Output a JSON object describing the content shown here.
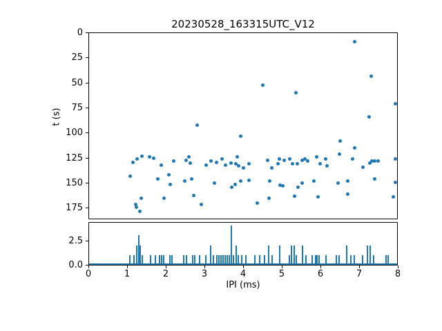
{
  "title": "20230528_163315UTC_V12",
  "colors": {
    "marker": "#1f77b4",
    "bar": "#1f77b4",
    "axis": "#000000",
    "background": "#ffffff"
  },
  "chart_data": [
    {
      "type": "scatter",
      "title": "20230528_163315UTC_V12",
      "xlabel": "",
      "ylabel": "t (s)",
      "xlim": [
        0,
        8
      ],
      "ylim": [
        0,
        185
      ],
      "y_inverted": true,
      "grid": false,
      "yticks": [
        "0",
        "25",
        "50",
        "75",
        "100",
        "125",
        "150",
        "175"
      ],
      "ytick_values": [
        0,
        25,
        50,
        75,
        100,
        125,
        150,
        175
      ],
      "points": [
        [
          6.88,
          9
        ],
        [
          7.3,
          43
        ],
        [
          4.5,
          52
        ],
        [
          5.36,
          60
        ],
        [
          7.93,
          71
        ],
        [
          7.25,
          84
        ],
        [
          2.8,
          92
        ],
        [
          3.93,
          103
        ],
        [
          6.5,
          108
        ],
        [
          6.88,
          115
        ],
        [
          1.07,
          143
        ],
        [
          1.14,
          129
        ],
        [
          1.21,
          171
        ],
        [
          1.24,
          174
        ],
        [
          1.25,
          126
        ],
        [
          1.32,
          178
        ],
        [
          1.36,
          165
        ],
        [
          1.38,
          123
        ],
        [
          1.57,
          124
        ],
        [
          1.68,
          125
        ],
        [
          1.79,
          146
        ],
        [
          1.88,
          132
        ],
        [
          1.95,
          165
        ],
        [
          2.07,
          142
        ],
        [
          2.11,
          151
        ],
        [
          2.2,
          128
        ],
        [
          2.48,
          148
        ],
        [
          2.52,
          127
        ],
        [
          2.59,
          124
        ],
        [
          2.63,
          130
        ],
        [
          2.66,
          146
        ],
        [
          2.71,
          162
        ],
        [
          2.91,
          171
        ],
        [
          3.04,
          132
        ],
        [
          3.16,
          128
        ],
        [
          3.25,
          150
        ],
        [
          3.3,
          129
        ],
        [
          3.45,
          126
        ],
        [
          3.54,
          132
        ],
        [
          3.68,
          130
        ],
        [
          3.7,
          154
        ],
        [
          3.79,
          151
        ],
        [
          3.8,
          131
        ],
        [
          3.84,
          124
        ],
        [
          3.88,
          133
        ],
        [
          3.93,
          148
        ],
        [
          4.0,
          135
        ],
        [
          4.14,
          131
        ],
        [
          4.14,
          147
        ],
        [
          4.36,
          170
        ],
        [
          4.63,
          127
        ],
        [
          4.66,
          165
        ],
        [
          4.68,
          148
        ],
        [
          4.73,
          135
        ],
        [
          4.89,
          131
        ],
        [
          4.93,
          126
        ],
        [
          4.95,
          152
        ],
        [
          5.02,
          153
        ],
        [
          5.05,
          127
        ],
        [
          5.2,
          126
        ],
        [
          5.27,
          131
        ],
        [
          5.32,
          163
        ],
        [
          5.39,
          131
        ],
        [
          5.41,
          154
        ],
        [
          5.52,
          127
        ],
        [
          5.52,
          150
        ],
        [
          5.59,
          126
        ],
        [
          5.66,
          128
        ],
        [
          5.82,
          148
        ],
        [
          5.89,
          124
        ],
        [
          5.93,
          164
        ],
        [
          5.98,
          131
        ],
        [
          6.13,
          126
        ],
        [
          6.16,
          133
        ],
        [
          6.45,
          150
        ],
        [
          6.48,
          121
        ],
        [
          6.7,
          148
        ],
        [
          6.7,
          161
        ],
        [
          6.82,
          126
        ],
        [
          7.09,
          134
        ],
        [
          7.27,
          130
        ],
        [
          7.32,
          128
        ],
        [
          7.39,
          128
        ],
        [
          7.39,
          146
        ],
        [
          7.48,
          128
        ],
        [
          7.87,
          164
        ],
        [
          7.93,
          126
        ],
        [
          7.93,
          149
        ]
      ]
    },
    {
      "type": "bar",
      "xlabel": "IPI (ms)",
      "ylabel": "",
      "xlim": [
        0,
        8
      ],
      "ylim": [
        0,
        4.3
      ],
      "grid": false,
      "xticks": [
        "0",
        "1",
        "2",
        "3",
        "4",
        "5",
        "6",
        "7",
        "8"
      ],
      "xtick_values": [
        0,
        1,
        2,
        3,
        4,
        5,
        6,
        7,
        8
      ],
      "yticks": [
        "0.0",
        "2.5"
      ],
      "ytick_values": [
        0,
        2.5
      ],
      "bar_width_ms": 0.04,
      "bars": [
        [
          1.05,
          1
        ],
        [
          1.16,
          1
        ],
        [
          1.23,
          2
        ],
        [
          1.29,
          3
        ],
        [
          1.33,
          2
        ],
        [
          1.38,
          1
        ],
        [
          1.59,
          1
        ],
        [
          1.71,
          1
        ],
        [
          1.82,
          1
        ],
        [
          1.88,
          1
        ],
        [
          1.93,
          1
        ],
        [
          2.09,
          1
        ],
        [
          2.14,
          1
        ],
        [
          2.45,
          1
        ],
        [
          2.51,
          1
        ],
        [
          2.68,
          1
        ],
        [
          2.73,
          1
        ],
        [
          2.86,
          1
        ],
        [
          3.02,
          1
        ],
        [
          3.14,
          2
        ],
        [
          3.21,
          1
        ],
        [
          3.3,
          1
        ],
        [
          3.36,
          1
        ],
        [
          3.41,
          1
        ],
        [
          3.46,
          1
        ],
        [
          3.51,
          1
        ],
        [
          3.57,
          1
        ],
        [
          3.62,
          1
        ],
        [
          3.68,
          4
        ],
        [
          3.74,
          1
        ],
        [
          3.81,
          2
        ],
        [
          3.86,
          1
        ],
        [
          3.94,
          1
        ],
        [
          4.06,
          1
        ],
        [
          4.28,
          1
        ],
        [
          4.41,
          1
        ],
        [
          4.53,
          1
        ],
        [
          4.64,
          2
        ],
        [
          4.73,
          1
        ],
        [
          4.93,
          2
        ],
        [
          5.18,
          1
        ],
        [
          5.23,
          2
        ],
        [
          5.31,
          2
        ],
        [
          5.36,
          1
        ],
        [
          5.51,
          2
        ],
        [
          5.6,
          1
        ],
        [
          5.76,
          1
        ],
        [
          5.86,
          1
        ],
        [
          5.9,
          1
        ],
        [
          5.94,
          1
        ],
        [
          6.12,
          1
        ],
        [
          6.4,
          1
        ],
        [
          6.46,
          1
        ],
        [
          6.66,
          2
        ],
        [
          6.77,
          1
        ],
        [
          6.86,
          1
        ],
        [
          7.07,
          1
        ],
        [
          7.2,
          2
        ],
        [
          7.27,
          2
        ],
        [
          7.35,
          1
        ],
        [
          7.67,
          1
        ],
        [
          7.74,
          1
        ]
      ]
    }
  ]
}
